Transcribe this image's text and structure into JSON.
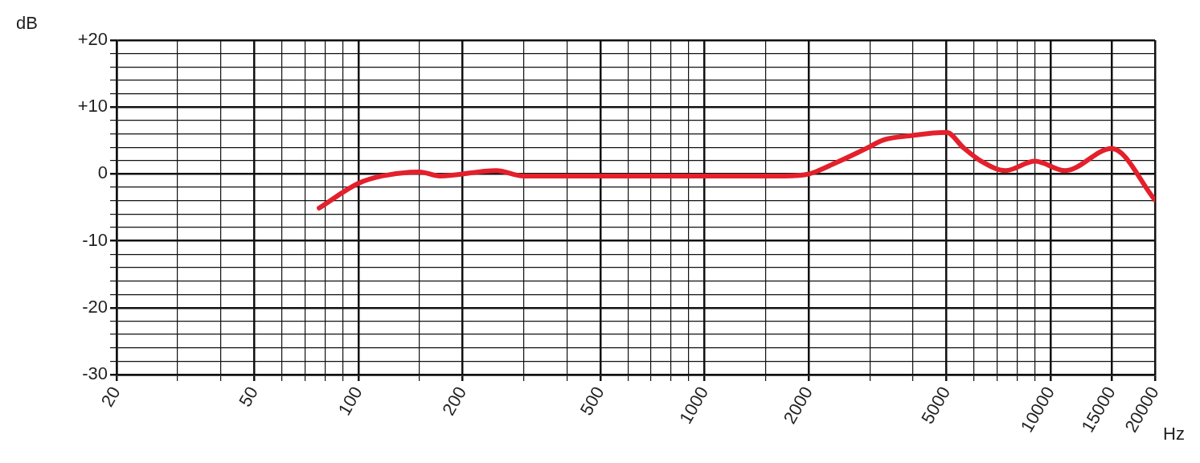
{
  "chart_data": {
    "type": "line",
    "xlabel": "Hz",
    "ylabel": "dB",
    "log": "x",
    "grid": true,
    "legend": false,
    "marker": "none",
    "line_style": "solid",
    "xlim": [
      20,
      20000
    ],
    "xticks": [
      20,
      {
        "value": 30,
        "label": null
      },
      {
        "value": 40,
        "label": null
      },
      50,
      {
        "value": 60,
        "label": null
      },
      {
        "value": 70,
        "label": null
      },
      {
        "value": 80,
        "label": null
      },
      {
        "value": 90,
        "label": null
      },
      100,
      {
        "value": 150,
        "label": null
      },
      200,
      {
        "value": 300,
        "label": null
      },
      {
        "value": 400,
        "label": null
      },
      500,
      {
        "value": 600,
        "label": null
      },
      {
        "value": 700,
        "label": null
      },
      {
        "value": 800,
        "label": null
      },
      {
        "value": 900,
        "label": null
      },
      1000,
      {
        "value": 1500,
        "label": null
      },
      2000,
      {
        "value": 3000,
        "label": null
      },
      {
        "value": 4000,
        "label": null
      },
      5000,
      {
        "value": 6000,
        "label": null
      },
      {
        "value": 7000,
        "label": null
      },
      {
        "value": 8000,
        "label": null
      },
      {
        "value": 9000,
        "label": null
      },
      10000,
      15000,
      20000
    ],
    "ylim": [
      -30,
      20
    ],
    "yticks": [
      {
        "value": -30,
        "label": "-30"
      },
      {
        "value": -28,
        "label": null
      },
      {
        "value": -26,
        "label": null
      },
      {
        "value": -24,
        "label": null
      },
      {
        "value": -22,
        "label": null
      },
      {
        "value": -20,
        "label": "-20"
      },
      {
        "value": -18,
        "label": null
      },
      {
        "value": -16,
        "label": null
      },
      {
        "value": -14,
        "label": null
      },
      {
        "value": -12,
        "label": null
      },
      {
        "value": -10,
        "label": "-10"
      },
      {
        "value": -8,
        "label": null
      },
      {
        "value": -6,
        "label": null
      },
      {
        "value": -4,
        "label": null
      },
      {
        "value": -2,
        "label": null
      },
      0,
      {
        "value": 2,
        "label": null
      },
      {
        "value": 4,
        "label": null
      },
      {
        "value": 6,
        "label": null
      },
      {
        "value": 8,
        "label": null
      },
      {
        "value": 10,
        "label": "+10"
      },
      {
        "value": 12,
        "label": null
      },
      {
        "value": 14,
        "label": null
      },
      {
        "value": 16,
        "label": null
      },
      {
        "value": 18,
        "label": null
      },
      {
        "value": 20,
        "label": "+20"
      }
    ],
    "x": [
      77,
      100,
      117,
      150,
      172,
      250,
      300,
      1000,
      1700,
      2000,
      2400,
      2900,
      3300,
      3900,
      5000,
      5600,
      6300,
      7400,
      9000,
      11000,
      15000,
      20000
    ],
    "series": [
      {
        "color": "#e3202b",
        "values": [
          -5.1,
          -1.4,
          -0.3,
          0.3,
          -0.3,
          0.5,
          -0.3,
          -0.3,
          -0.3,
          0,
          1.7,
          3.7,
          5.1,
          5.7,
          6.2,
          3.9,
          1.9,
          0.5,
          1.9,
          0.5,
          3.8,
          -3.9
        ]
      }
    ]
  }
}
